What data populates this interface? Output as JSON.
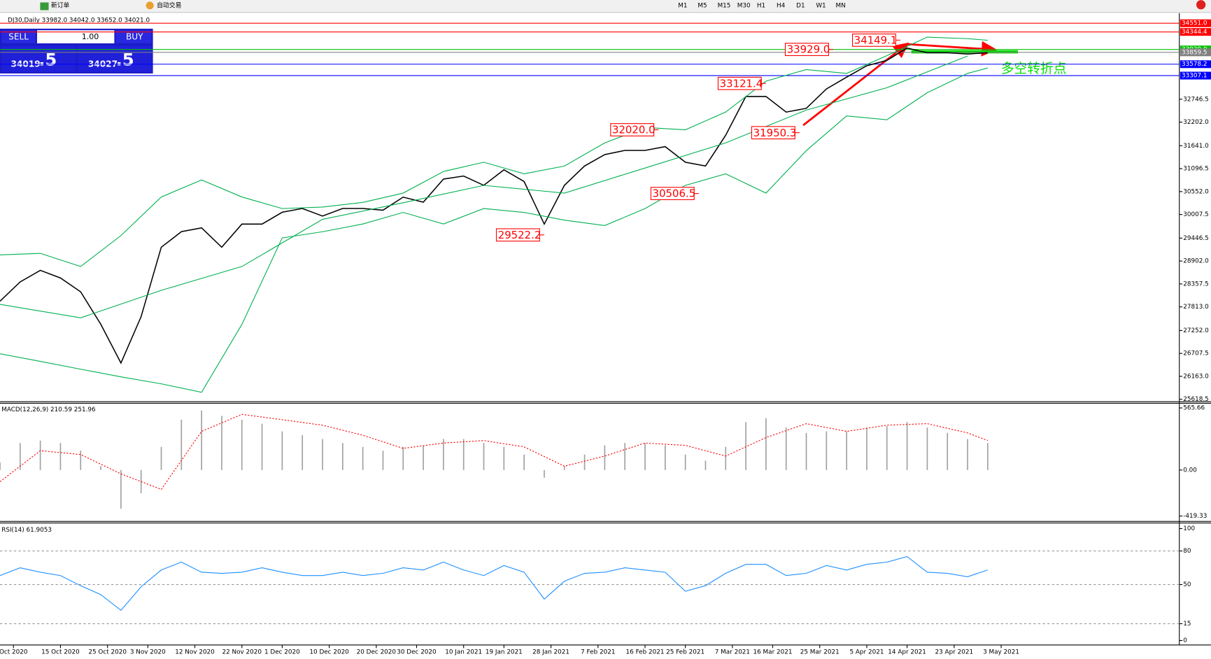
{
  "toolbar": {
    "buttons": [
      "新订单",
      "自动交易"
    ],
    "timeframes": [
      "M1",
      "M5",
      "M15",
      "M30",
      "H1",
      "H4",
      "D1",
      "W1",
      "MN"
    ]
  },
  "order_panel": {
    "sell": "SELL",
    "buy": "BUY",
    "lot": "1.00",
    "bid_main": "34019",
    "bid_tail": ".5",
    "ask_main": "34027",
    "ask_tail": ".5"
  },
  "chart_data": [
    {
      "type": "line",
      "title": "DJ30,Daily 33982.0 34042.0 33652.0 34021.0",
      "note": "多空转折点",
      "xlim": [
        0,
        150
      ],
      "ylim": [
        25560,
        34770
      ],
      "xticks": [
        {
          "value": 2,
          "label": "Oct 2020"
        },
        {
          "value": 9,
          "label": "15 Oct 2020"
        },
        {
          "value": 16,
          "label": "25 Oct 2020"
        },
        {
          "value": 22,
          "label": "3 Nov 2020"
        },
        {
          "value": 29,
          "label": "12 Nov 2020"
        },
        {
          "value": 36,
          "label": "22 Nov 2020"
        },
        {
          "value": 42,
          "label": "1 Dec 2020"
        },
        {
          "value": 49,
          "label": "10 Dec 2020"
        },
        {
          "value": 56,
          "label": "20 Dec 2020"
        },
        {
          "value": 62,
          "label": "30 Dec 2020"
        },
        {
          "value": 69,
          "label": "10 Jan 2021"
        },
        {
          "value": 75,
          "label": "19 Jan 2021"
        },
        {
          "value": 82,
          "label": "28 Jan 2021"
        },
        {
          "value": 89,
          "label": "7 Feb 2021"
        },
        {
          "value": 96,
          "label": "16 Feb 2021"
        },
        {
          "value": 102,
          "label": "25 Feb 2021"
        },
        {
          "value": 109,
          "label": "7 Mar 2021"
        },
        {
          "value": 115,
          "label": "16 Mar 2021"
        },
        {
          "value": 122,
          "label": "25 Mar 2021"
        },
        {
          "value": 129,
          "label": "5 Apr 2021"
        },
        {
          "value": 135,
          "label": "14 Apr 2021"
        },
        {
          "value": 142,
          "label": "23 Apr 2021"
        },
        {
          "value": 149,
          "label": "3 May 2021"
        }
      ],
      "yticks": [
        {
          "value": 25618.5,
          "label": "25618.5"
        },
        {
          "value": 26163,
          "label": "26163.0"
        },
        {
          "value": 26707.5,
          "label": "26707.5"
        },
        {
          "value": 27252,
          "label": "27252.0"
        },
        {
          "value": 27813,
          "label": "27813.0"
        },
        {
          "value": 28357.5,
          "label": "28357.5"
        },
        {
          "value": 28902,
          "label": "28902.0"
        },
        {
          "value": 29446.5,
          "label": "29446.5"
        },
        {
          "value": 30007.5,
          "label": "30007.5"
        },
        {
          "value": 30552,
          "label": "30552.0"
        },
        {
          "value": 31096.5,
          "label": "31096.5"
        },
        {
          "value": 31641,
          "label": "31641.0"
        },
        {
          "value": 32202,
          "label": "32202.0"
        },
        {
          "value": 32746.5,
          "label": "32746.5"
        }
      ],
      "levels": [
        {
          "value": 34551,
          "label": "34551.0",
          "color": "#ff0000"
        },
        {
          "value": 34344.4,
          "label": "34344.4",
          "color": "#ff0000"
        },
        {
          "value": 33929,
          "label": "33929.0",
          "color": "#00c000"
        },
        {
          "value": 33859.5,
          "label": "33859.5",
          "color": "#808080"
        },
        {
          "value": 33578.2,
          "label": "33578.2",
          "color": "#0000ff"
        },
        {
          "value": 33307.1,
          "label": "33307.1",
          "color": "#0000ff"
        }
      ],
      "annotations": [
        {
          "x": 134,
          "value": 34149.1,
          "label": "34149.1"
        },
        {
          "x": 124,
          "value": 33929,
          "label": "33929.0"
        },
        {
          "x": 114,
          "value": 33121.4,
          "label": "33121.4"
        },
        {
          "x": 98,
          "value": 32020,
          "label": "32020.0"
        },
        {
          "x": 119,
          "value": 31950.3,
          "label": "31950.3"
        },
        {
          "x": 104,
          "value": 30506.5,
          "label": "30506.5"
        },
        {
          "x": 81,
          "value": 29522.2,
          "label": "29522.2"
        }
      ],
      "series": [
        {
          "color": "#000000",
          "x": [
            0,
            3,
            6,
            9,
            12,
            15,
            18,
            21,
            24,
            27,
            30,
            33,
            36,
            39,
            42,
            45,
            48,
            51,
            54,
            57,
            60,
            63,
            66,
            69,
            72,
            75,
            78,
            81,
            84,
            87,
            90,
            93,
            96,
            99,
            102,
            105,
            108,
            111,
            114,
            117,
            120,
            123,
            126,
            129,
            132,
            135,
            138,
            141,
            144,
            147
          ],
          "values": [
            27946,
            28406,
            28680,
            28500,
            28170,
            27400,
            26480,
            27580,
            29230,
            29600,
            29690,
            29230,
            29780,
            29780,
            30060,
            30150,
            29970,
            30150,
            30150,
            30110,
            30420,
            30300,
            30850,
            30920,
            30700,
            31070,
            30790,
            29780,
            30700,
            31160,
            31430,
            31530,
            31530,
            31620,
            31250,
            31160,
            31890,
            32810,
            32810,
            32440,
            32530,
            32990,
            33270,
            33540,
            33670,
            33960,
            33850,
            33850,
            33820,
            33850
          ]
        },
        {
          "color": "#00b050",
          "x": [
            0,
            6,
            12,
            18,
            24,
            30,
            36,
            42,
            48,
            54,
            60,
            66,
            72,
            78,
            84,
            90,
            96,
            102,
            108,
            114,
            120,
            126,
            132,
            138,
            144,
            147
          ],
          "values": [
            29048,
            29085,
            28773,
            29507,
            30424,
            30827,
            30424,
            30149,
            30185,
            30295,
            30516,
            31029,
            31249,
            30974,
            31158,
            31708,
            32075,
            32020,
            32442,
            33175,
            33450,
            33359,
            33781,
            34221,
            34184,
            34147
          ]
        },
        {
          "color": "#00b050",
          "x": [
            0,
            12,
            24,
            36,
            48,
            60,
            72,
            84,
            96,
            108,
            120,
            132,
            144
          ],
          "values": [
            27874,
            27553,
            28205,
            28773,
            29892,
            30287,
            30699,
            30516,
            31112,
            31708,
            32487,
            33020,
            33772
          ]
        },
        {
          "color": "#00b050",
          "x": [
            0,
            6,
            12,
            18,
            24,
            30,
            36,
            42,
            48,
            54,
            60,
            66,
            72,
            78,
            84,
            90,
            96,
            102,
            108,
            114,
            120,
            126,
            132,
            138,
            144,
            147
          ],
          "values": [
            26700,
            26517,
            26333,
            26150,
            25985,
            25783,
            27397,
            29452,
            29598,
            29782,
            30057,
            29782,
            30149,
            30057,
            29874,
            29745,
            30149,
            30699,
            30974,
            30516,
            31524,
            32350,
            32258,
            32900,
            33359,
            33487
          ]
        }
      ]
    },
    {
      "type": "bar",
      "title": "MACD(12,26,9) 210.59 251.96",
      "xlim": [
        0,
        150
      ],
      "ylim": [
        -468,
        608
      ],
      "yticks": [
        565.66,
        {
          "value": 0,
          "label": "0.00"
        },
        -419.33
      ],
      "series": [
        {
          "type": "bar",
          "color": "#a0a0a0",
          "x": [
            0,
            3,
            6,
            9,
            12,
            15,
            18,
            21,
            24,
            27,
            30,
            33,
            36,
            39,
            42,
            45,
            48,
            51,
            54,
            57,
            60,
            63,
            66,
            69,
            72,
            75,
            78,
            81,
            84,
            87,
            90,
            93,
            96,
            99,
            102,
            105,
            108,
            111,
            114,
            117,
            120,
            123,
            126,
            129,
            132,
            135,
            138,
            141,
            144,
            147
          ],
          "values": [
            70,
            246,
            268,
            246,
            176,
            35,
            -352,
            -211,
            211,
            458,
            542,
            493,
            458,
            422,
            352,
            317,
            282,
            246,
            211,
            176,
            211,
            225,
            282,
            282,
            246,
            211,
            141,
            -70,
            35,
            141,
            225,
            246,
            246,
            225,
            141,
            85,
            211,
            437,
            472,
            387,
            338,
            352,
            352,
            387,
            401,
            437,
            387,
            338,
            282,
            246
          ]
        },
        {
          "type": "line",
          "dashed": true,
          "color": "#ff0000",
          "x": [
            0,
            6,
            12,
            18,
            24,
            30,
            36,
            42,
            48,
            54,
            60,
            66,
            72,
            78,
            84,
            90,
            96,
            102,
            108,
            114,
            120,
            126,
            132,
            138,
            144,
            147
          ],
          "values": [
            -106,
            176,
            141,
            -35,
            -176,
            352,
            507,
            458,
            408,
            317,
            197,
            246,
            268,
            211,
            35,
            127,
            246,
            225,
            127,
            296,
            422,
            352,
            408,
            422,
            338,
            268
          ]
        }
      ]
    },
    {
      "type": "line",
      "title": "RSI(14) 61.9053",
      "xlim": [
        0,
        150
      ],
      "ylim": [
        -4,
        105
      ],
      "yticks": [
        100,
        80,
        50,
        15,
        0
      ],
      "levels": [
        80,
        50,
        15
      ],
      "series": [
        {
          "color": "#1e90ff",
          "x": [
            0,
            3,
            6,
            9,
            12,
            15,
            18,
            21,
            24,
            27,
            30,
            33,
            36,
            39,
            42,
            45,
            48,
            51,
            54,
            57,
            60,
            63,
            66,
            69,
            72,
            75,
            78,
            81,
            84,
            87,
            90,
            93,
            96,
            99,
            102,
            105,
            108,
            111,
            114,
            117,
            120,
            123,
            126,
            129,
            132,
            135,
            138,
            141,
            144,
            147
          ],
          "values": [
            58,
            65,
            61,
            58,
            49,
            41,
            27,
            48,
            63,
            70,
            61,
            60,
            61,
            65,
            61,
            58,
            58,
            61,
            58,
            60,
            65,
            63,
            70,
            63,
            58,
            67,
            61,
            37,
            53,
            60,
            61,
            65,
            63,
            61,
            44,
            49,
            60,
            68,
            68,
            58,
            60,
            67,
            63,
            68,
            70,
            75,
            61,
            60,
            57,
            63
          ]
        }
      ]
    }
  ]
}
